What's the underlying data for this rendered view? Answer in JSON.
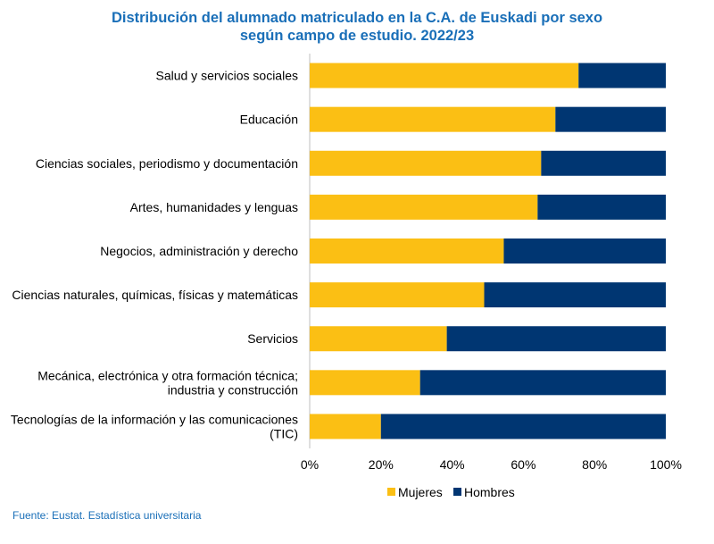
{
  "title_line1": "Distribución del alumnado matriculado en la C.A. de Euskadi por sexo",
  "title_line2": "según campo de estudio. 2022/23",
  "source": "Fuente: Eustat. Estadística universitaria",
  "colors": {
    "mujeres": "#fbbf14",
    "hombres": "#003672",
    "title": "#1a6fb8",
    "gridline": "#bfbfbf"
  },
  "chart_data": {
    "type": "bar",
    "orientation": "horizontal",
    "stacked": "percent",
    "categories": [
      [
        "Salud y servicios sociales"
      ],
      [
        "Educación"
      ],
      [
        "Ciencias sociales, periodismo y documentación"
      ],
      [
        "Artes, humanidades y lenguas"
      ],
      [
        "Negocios, administración y derecho"
      ],
      [
        "Ciencias naturales, químicas, físicas y matemáticas"
      ],
      [
        "Servicios"
      ],
      [
        "Mecánica, electrónica y otra formación técnica;",
        "industria y construcción"
      ],
      [
        "Tecnologías de la información y las comunicaciones",
        "(TIC)"
      ]
    ],
    "series": [
      {
        "name": "Mujeres",
        "values": [
          75.5,
          69,
          65,
          64,
          54.5,
          49,
          38.5,
          31,
          20
        ]
      },
      {
        "name": "Hombres",
        "values": [
          24.5,
          31,
          35,
          36,
          45.5,
          51,
          61.5,
          69,
          80
        ]
      }
    ],
    "xlim": [
      0,
      100
    ],
    "xticks": [
      "0%",
      "20%",
      "40%",
      "60%",
      "80%",
      "100%"
    ],
    "legend_position": "bottom"
  }
}
